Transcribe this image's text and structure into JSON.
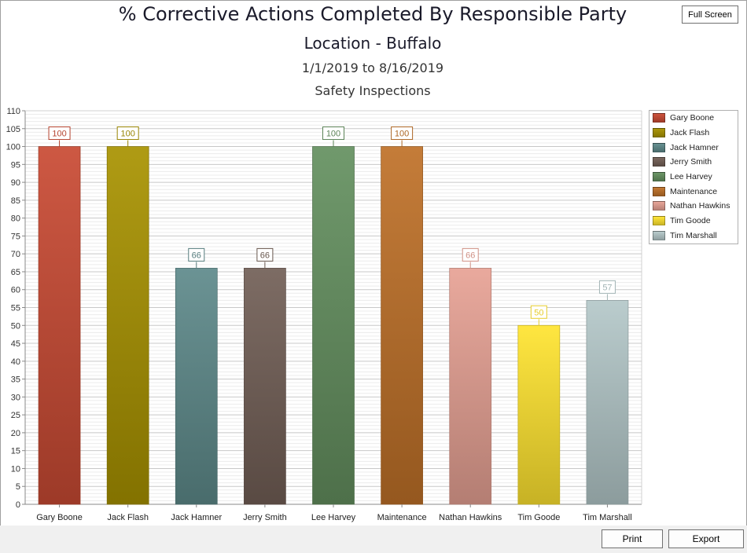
{
  "header": {
    "title": "% Corrective Actions Completed By Responsible Party",
    "subtitle": "Location - Buffalo",
    "date_range": "1/1/2019 to 8/16/2019",
    "category": "Safety Inspections"
  },
  "buttons": {
    "full_screen": "Full Screen",
    "print": "Print",
    "export": "Export"
  },
  "chart_data": {
    "type": "bar",
    "categories": [
      "Gary Boone",
      "Jack Flash",
      "Jack Hamner",
      "Jerry Smith",
      "Lee Harvey",
      "Maintenance",
      "Nathan Hawkins",
      "Tim Goode",
      "Tim Marshall"
    ],
    "values": [
      100,
      100,
      66,
      66,
      100,
      100,
      66,
      50,
      57
    ],
    "colors": [
      "#c94a33",
      "#a89200",
      "#5e8a8b",
      "#725f56",
      "#64905f",
      "#bf7128",
      "#e7a194",
      "#ffe42f",
      "#b4c8c9"
    ],
    "ylim": [
      0,
      110
    ],
    "yticks": [
      0,
      5,
      10,
      15,
      20,
      25,
      30,
      35,
      40,
      45,
      50,
      55,
      60,
      65,
      70,
      75,
      80,
      85,
      90,
      95,
      100,
      105,
      110
    ],
    "grid": true,
    "legend_position": "right",
    "xlabel": "",
    "ylabel": ""
  }
}
